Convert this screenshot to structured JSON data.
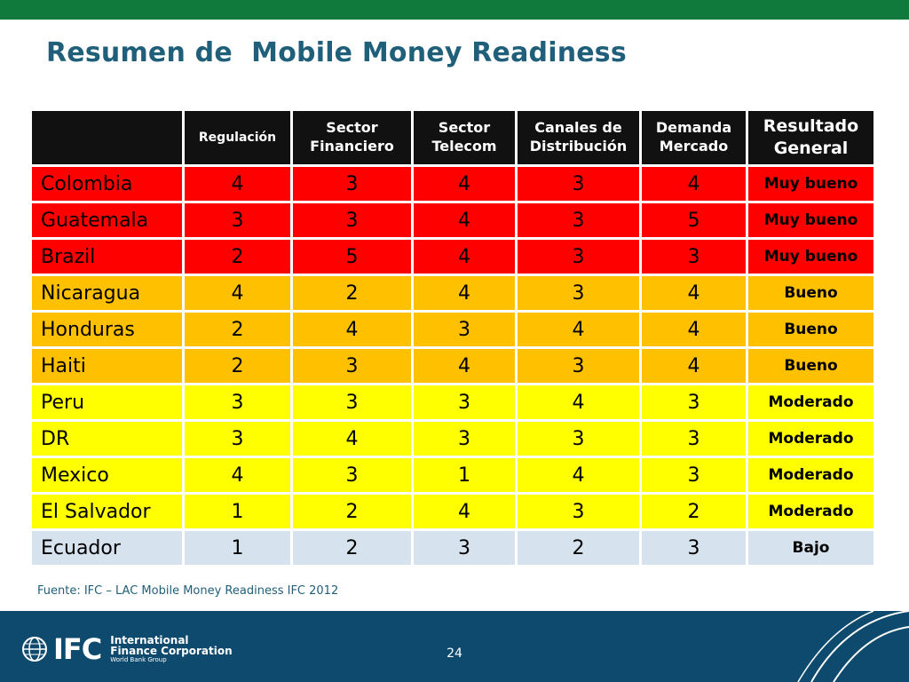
{
  "slide": {
    "title": "Resumen de  Mobile Money Readiness",
    "source": "Fuente: IFC – LAC Mobile Money Readiness IFC 2012",
    "page_number": "24"
  },
  "table": {
    "headers": {
      "country": "",
      "regulacion": "Regulación",
      "sector_financiero": "Sector Financiero",
      "sector_telecom": "Sector Telecom",
      "canales": "Canales de Distribución",
      "demanda": "Demanda Mercado",
      "resultado": "Resultado General"
    },
    "rows": [
      {
        "country": "Colombia",
        "reg": "4",
        "fin": "3",
        "tel": "4",
        "can": "3",
        "dem": "4",
        "result": "Muy bueno"
      },
      {
        "country": "Guatemala",
        "reg": "3",
        "fin": "3",
        "tel": "4",
        "can": "3",
        "dem": "5",
        "result": "Muy bueno"
      },
      {
        "country": "Brazil",
        "reg": "2",
        "fin": "5",
        "tel": "4",
        "can": "3",
        "dem": "3",
        "result": "Muy bueno"
      },
      {
        "country": "Nicaragua",
        "reg": "4",
        "fin": "2",
        "tel": "4",
        "can": "3",
        "dem": "4",
        "result": "Bueno"
      },
      {
        "country": "Honduras",
        "reg": "2",
        "fin": "4",
        "tel": "3",
        "can": "4",
        "dem": "4",
        "result": "Bueno"
      },
      {
        "country": "Haiti",
        "reg": "2",
        "fin": "3",
        "tel": "4",
        "can": "3",
        "dem": "4",
        "result": "Bueno"
      },
      {
        "country": "Peru",
        "reg": "3",
        "fin": "3",
        "tel": "3",
        "can": "4",
        "dem": "3",
        "result": "Moderado"
      },
      {
        "country": "DR",
        "reg": "3",
        "fin": "4",
        "tel": "3",
        "can": "3",
        "dem": "3",
        "result": "Moderado"
      },
      {
        "country": "Mexico",
        "reg": "4",
        "fin": "3",
        "tel": "1",
        "can": "4",
        "dem": "3",
        "result": "Moderado"
      },
      {
        "country": "El Salvador",
        "reg": "1",
        "fin": "2",
        "tel": "4",
        "can": "3",
        "dem": "2",
        "result": "Moderado"
      },
      {
        "country": "Ecuador",
        "reg": "1",
        "fin": "2",
        "tel": "3",
        "can": "2",
        "dem": "3",
        "result": "Bajo"
      }
    ]
  },
  "footer": {
    "logo_letters": "IFC",
    "org_line1": "International",
    "org_line2": "Finance Corporation",
    "org_line3": "World Bank Group"
  },
  "colors": {
    "top_band": "#0f7a3c",
    "title": "#1f5f7a",
    "muy_bueno": "#ff0000",
    "bueno": "#ffc000",
    "moderado": "#ffff00",
    "bajo": "#d6e3ee",
    "footer": "#0d4a6e"
  }
}
